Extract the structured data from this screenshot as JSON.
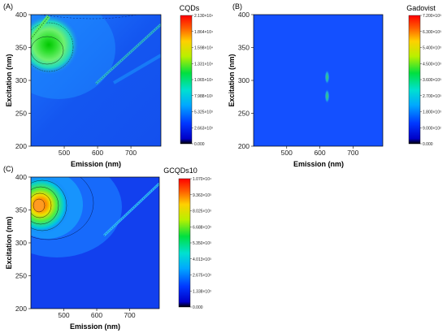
{
  "chart_data": [
    {
      "type": "heatmap",
      "panel_label": "(A)",
      "title": "CQDs",
      "xlabel": "Emission (nm)",
      "ylabel": "Excitation (nm)",
      "xlim": [
        400,
        790
      ],
      "ylim": [
        200,
        400
      ],
      "xticks": [
        "500",
        "600",
        "700"
      ],
      "yticks": [
        "200",
        "250",
        "300",
        "350",
        "400"
      ],
      "xtick_values": [
        500,
        600,
        700
      ],
      "ytick_values": [
        200,
        250,
        300,
        350,
        400
      ],
      "colorbar": {
        "min": 0,
        "max": 21300,
        "tick_labels": [
          "2.130×10⁴",
          "1.864×10⁴",
          "1.598×10⁴",
          "1.331×10⁴",
          "1.065×10⁴",
          "7.988×10³",
          "5.325×10³",
          "2.663×10³",
          "0.000"
        ]
      },
      "peaks": [
        {
          "emission": 455,
          "excitation": 337,
          "value": 21300
        }
      ]
    },
    {
      "type": "heatmap",
      "panel_label": "(B)",
      "title": "Gadovist",
      "xlabel": "Emission (nm)",
      "ylabel": "Excitation (nm)",
      "xlim": [
        400,
        790
      ],
      "ylim": [
        200,
        400
      ],
      "xticks": [
        "500",
        "600",
        "700"
      ],
      "yticks": [
        "200",
        "250",
        "300",
        "350",
        "400"
      ],
      "xtick_values": [
        500,
        600,
        700
      ],
      "ytick_values": [
        200,
        250,
        300,
        350,
        400
      ],
      "colorbar": {
        "min": 0,
        "max": 7200,
        "tick_labels": [
          "7.200×10³",
          "6.300×10³",
          "5.400×10³",
          "4.500×10³",
          "3.600×10³",
          "2.700×10³",
          "1.800×10³",
          "9.000×10²",
          "0.000"
        ]
      },
      "peaks": [
        {
          "emission": 622,
          "excitation": 305,
          "value": 4000
        },
        {
          "emission": 622,
          "excitation": 276,
          "value": 4000
        }
      ]
    },
    {
      "type": "heatmap",
      "panel_label": "(C)",
      "title": "GCQDs10",
      "xlabel": "Emission (nm)",
      "ylabel": "Excitation (nm)",
      "xlim": [
        400,
        790
      ],
      "ylim": [
        200,
        400
      ],
      "xticks": [
        "500",
        "600",
        "700"
      ],
      "yticks": [
        "200",
        "250",
        "300",
        "350",
        "400"
      ],
      "xtick_values": [
        500,
        600,
        700
      ],
      "ytick_values": [
        200,
        250,
        300,
        350,
        400
      ],
      "colorbar": {
        "min": 0,
        "max": 10700,
        "tick_labels": [
          "1.070×10⁴",
          "9.363×10³",
          "8.025×10³",
          "6.688×10³",
          "5.350×10³",
          "4.013×10³",
          "2.675×10³",
          "1.338×10³",
          "0.000"
        ]
      },
      "peaks": [
        {
          "emission": 442,
          "excitation": 357,
          "value": 10700
        }
      ]
    }
  ]
}
